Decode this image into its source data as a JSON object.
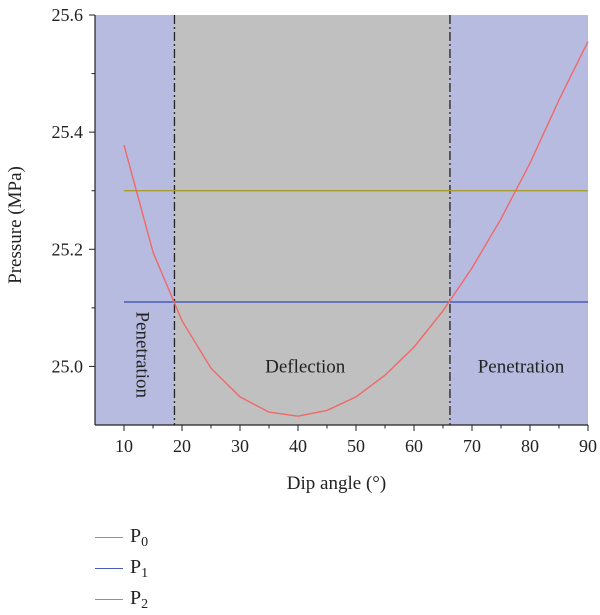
{
  "chart_data": {
    "type": "line",
    "xlabel": "Dip angle (°)",
    "ylabel": "Pressure (MPa)",
    "xlim": [
      5,
      90
    ],
    "ylim": [
      24.9,
      25.6
    ],
    "x_ticks": [
      10,
      20,
      30,
      40,
      50,
      60,
      70,
      80,
      90
    ],
    "y_ticks": [
      25.0,
      25.2,
      25.4,
      25.6
    ],
    "y_tick_labels": [
      "25.0",
      "25.2",
      "25.4",
      "25.6"
    ],
    "grid": false,
    "legend_position": "below",
    "regions": [
      {
        "label": "Penetration",
        "x_range": [
          5,
          18.7
        ],
        "color": "#b8bbe0",
        "label_orientation": "vertical"
      },
      {
        "label": "Deflection",
        "x_range": [
          18.7,
          66.2
        ],
        "color": "#c0c0c0",
        "label_orientation": "horizontal"
      },
      {
        "label": "Penetration",
        "x_range": [
          66.2,
          90
        ],
        "color": "#b8bbe0",
        "label_orientation": "horizontal"
      }
    ],
    "boundaries": [
      18.7,
      66.2
    ],
    "series": [
      {
        "name": "P",
        "subscript": "0",
        "color": "#a89b2e",
        "x": [
          10,
          90
        ],
        "y": [
          25.3,
          25.3
        ]
      },
      {
        "name": "P",
        "subscript": "1",
        "color": "#4a5bb8",
        "x": [
          10,
          90
        ],
        "y": [
          25.11,
          25.11
        ]
      },
      {
        "name": "P",
        "subscript": "2",
        "color": "#f06868",
        "x": [
          10,
          15,
          20,
          25,
          30,
          35,
          40,
          45,
          50,
          55,
          60,
          65,
          70,
          75,
          80,
          85,
          90
        ],
        "y": [
          25.378,
          25.195,
          25.078,
          24.997,
          24.948,
          24.922,
          24.915,
          24.925,
          24.948,
          24.985,
          25.033,
          25.095,
          25.168,
          25.252,
          25.347,
          25.455,
          25.555
        ]
      }
    ]
  }
}
